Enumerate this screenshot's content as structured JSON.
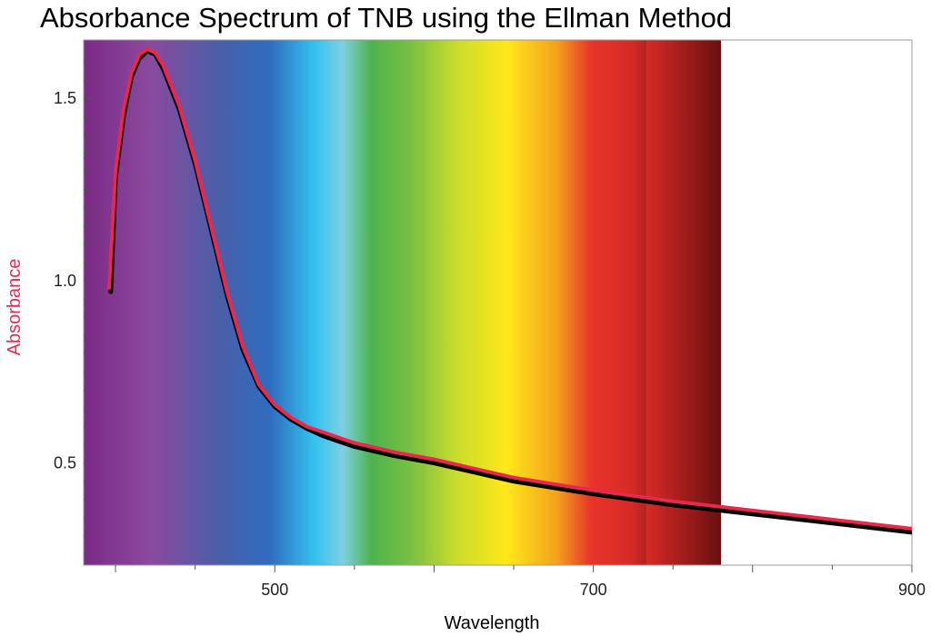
{
  "chart_data": {
    "type": "line",
    "title": "Absorbance Spectrum of TNB using the Ellman Method",
    "xlabel": "Wavelength",
    "ylabel": "Absorbance",
    "xlim": [
      380,
      900
    ],
    "ylim": [
      0.22,
      1.66
    ],
    "xticks": [
      500,
      700,
      900
    ],
    "yticks": [
      0.5,
      1.0,
      1.5
    ],
    "xtick_labels": [
      "500",
      "700",
      "900"
    ],
    "ytick_labels": [
      "0.5",
      "1.0",
      "1.5"
    ],
    "grid": false,
    "background": "visible-spectrum color band from 380 to 780",
    "series": [
      {
        "color": "#000000",
        "x": [
          397,
          400,
          405,
          410,
          415,
          420,
          425,
          430,
          440,
          450,
          460,
          470,
          480,
          490,
          500,
          510,
          520,
          530,
          550,
          575,
          600,
          650,
          700,
          750,
          800,
          850,
          900
        ],
        "y": [
          0.97,
          1.28,
          1.45,
          1.56,
          1.61,
          1.63,
          1.62,
          1.58,
          1.47,
          1.32,
          1.14,
          0.96,
          0.81,
          0.71,
          0.655,
          0.62,
          0.595,
          0.575,
          0.545,
          0.52,
          0.5,
          0.45,
          0.415,
          0.385,
          0.36,
          0.335,
          0.31
        ]
      },
      {
        "color": "#e8284f",
        "x": [
          396,
          400,
          405,
          410,
          415,
          420,
          425,
          430,
          440,
          450,
          460,
          470,
          480,
          490,
          500,
          510,
          520,
          530,
          550,
          575,
          600,
          650,
          700,
          750,
          800,
          850,
          900
        ],
        "y": [
          0.98,
          1.3,
          1.47,
          1.57,
          1.62,
          1.635,
          1.625,
          1.59,
          1.48,
          1.33,
          1.15,
          0.97,
          0.82,
          0.715,
          0.66,
          0.625,
          0.6,
          0.585,
          0.555,
          0.53,
          0.51,
          0.46,
          0.425,
          0.395,
          0.37,
          0.345,
          0.32
        ]
      }
    ]
  }
}
